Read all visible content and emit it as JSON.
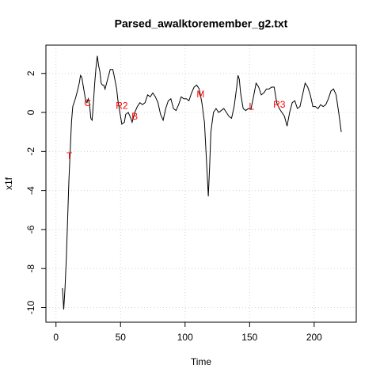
{
  "chart_data": {
    "type": "line",
    "title": "Parsed_awalktoremember_g2.txt",
    "xlabel": "Time",
    "ylabel": "x1f",
    "x": [
      5,
      6,
      7,
      8,
      9,
      10,
      11,
      12,
      13,
      15,
      17,
      18,
      19,
      20,
      21,
      22,
      23,
      24,
      25,
      26,
      27,
      28,
      29,
      30,
      31,
      32,
      33,
      34,
      35,
      36,
      37,
      38,
      40,
      42,
      44,
      45,
      47,
      48,
      50,
      51,
      53,
      54,
      56,
      58,
      59,
      61,
      63,
      65,
      67,
      69,
      71,
      73,
      75,
      77,
      79,
      81,
      83,
      85,
      87,
      89,
      91,
      93,
      95,
      97,
      99,
      101,
      103,
      105,
      107,
      109,
      111,
      113,
      115,
      117,
      118,
      119,
      120,
      122,
      124,
      126,
      128,
      130,
      132,
      134,
      136,
      138,
      140,
      141,
      142,
      143,
      145,
      147,
      149,
      151,
      153,
      155,
      157,
      159,
      161,
      163,
      165,
      167,
      169,
      171,
      173,
      175,
      177,
      179,
      181,
      183,
      185,
      187,
      189,
      191,
      193,
      195,
      197,
      199,
      201,
      203,
      205,
      207,
      209,
      211,
      213,
      215,
      217,
      219,
      221
    ],
    "series": [
      {
        "name": "x1f",
        "color": "#000000",
        "values": [
          -9,
          -10.1,
          -9,
          -7.5,
          -5.5,
          -3.5,
          -2,
          -0.5,
          0.3,
          0.7,
          1.2,
          1.5,
          1.9,
          1.8,
          1.4,
          1.0,
          0.6,
          0.5,
          0.7,
          0.4,
          -0.3,
          -0.4,
          0.5,
          1.5,
          2.3,
          2.9,
          2.4,
          2.1,
          1.5,
          1.4,
          1.4,
          1.2,
          1.7,
          2.2,
          2.2,
          1.9,
          1.2,
          0.6,
          -0.2,
          -0.6,
          -0.5,
          -0.1,
          0.0,
          -0.3,
          -0.5,
          0.0,
          0.3,
          0.5,
          0.4,
          0.5,
          0.9,
          0.8,
          1.0,
          0.8,
          0.5,
          -0.1,
          -0.4,
          0.2,
          0.6,
          0.7,
          0.2,
          0.1,
          0.4,
          0.8,
          0.7,
          0.7,
          0.6,
          1.0,
          1.3,
          1.4,
          1.2,
          0.5,
          -0.5,
          -3.0,
          -4.3,
          -2.8,
          -1.0,
          0.0,
          0.2,
          0.0,
          0.1,
          0.2,
          0.0,
          -0.2,
          -0.3,
          0.3,
          1.3,
          1.9,
          1.7,
          1.0,
          0.2,
          0.1,
          0.2,
          0.15,
          0.8,
          1.5,
          1.3,
          0.9,
          1.0,
          1.2,
          1.2,
          1.3,
          1.3,
          0.5,
          0.2,
          0.0,
          -0.2,
          -0.7,
          0.0,
          0.5,
          0.6,
          0.2,
          0.3,
          0.9,
          1.5,
          1.3,
          0.9,
          0.3,
          0.3,
          0.2,
          0.4,
          0.3,
          0.4,
          0.7,
          1.1,
          1.2,
          0.9,
          0.0,
          -1.0
        ]
      }
    ],
    "annotations": [
      {
        "label": "T",
        "x": 10.4,
        "y": -2.27
      },
      {
        "label": "C",
        "x": 24.5,
        "y": 0.45
      },
      {
        "label": "R2",
        "x": 51,
        "y": 0.32
      },
      {
        "label": "B",
        "x": 61,
        "y": -0.24
      },
      {
        "label": "M",
        "x": 112,
        "y": 0.9
      },
      {
        "label": "L",
        "x": 151.5,
        "y": 0.28
      },
      {
        "label": "R3",
        "x": 173,
        "y": 0.37
      }
    ],
    "annotation_color": "#ff0000",
    "xlim": [
      -7.8,
      232.6
    ],
    "ylim": [
      -10.75,
      3.45
    ],
    "xticks": [
      0,
      50,
      100,
      150,
      200
    ],
    "yticks": [
      -10,
      -8,
      -6,
      -4,
      -2,
      0,
      2
    ],
    "grid": true
  }
}
